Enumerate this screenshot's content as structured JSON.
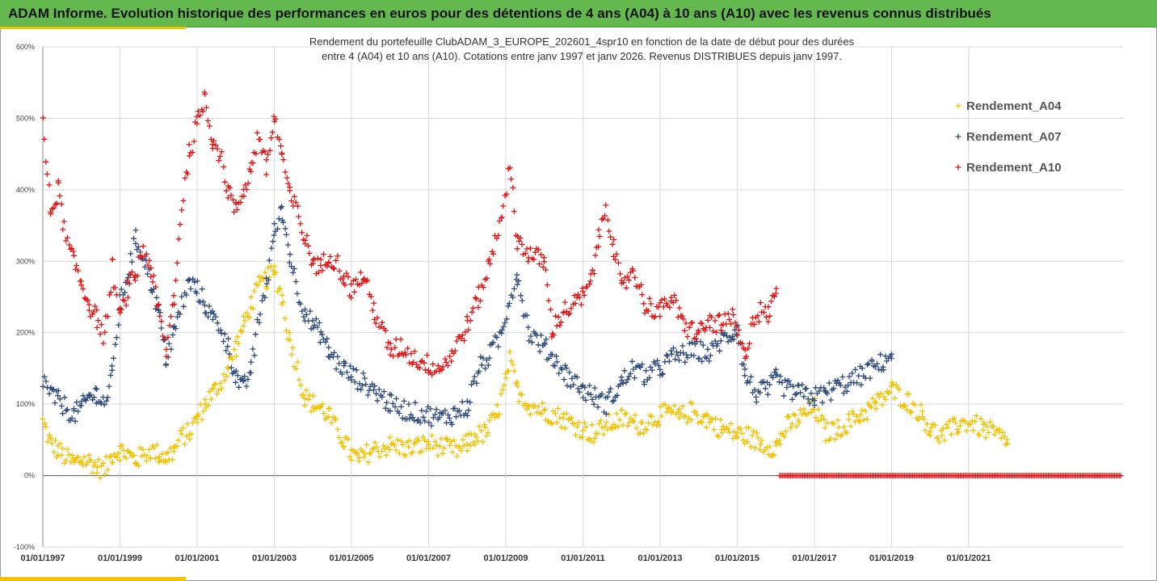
{
  "header": {
    "title": "ADAM Informe. Evolution historique des performances en euros pour des détentions de 4 ans (A04) à 10 ans (A10) avec les revenus connus distribués"
  },
  "chart_data": {
    "type": "scatter",
    "title_lines": [
      "Rendement du portefeuille ClubADAM_3_EUROPE_202601_4spr10  en fonction de la date de début pour des durées",
      "entre 4 (A04) et 10 ans (A10). Cotations entre janv 1997 et janv 2026. Revenus DISTRIBUES depuis janv 1997."
    ],
    "xlabel": "",
    "ylabel": "",
    "ylim": [
      -100,
      600
    ],
    "xlim": [
      1997.0,
      2025.0
    ],
    "y_ticks": [
      -100,
      0,
      100,
      200,
      300,
      400,
      500,
      600
    ],
    "y_tick_labels": [
      "-100%",
      "0%",
      "100%",
      "200%",
      "300%",
      "400%",
      "500%",
      "600%"
    ],
    "x_ticks": [
      1997,
      1999,
      2001,
      2003,
      2005,
      2007,
      2009,
      2011,
      2013,
      2015,
      2017,
      2019,
      2021
    ],
    "x_tick_labels": [
      "01/01/1997",
      "01/01/1999",
      "01/01/2001",
      "01/01/2003",
      "01/01/2005",
      "01/01/2007",
      "01/01/2009",
      "01/01/2011",
      "01/01/2013",
      "01/01/2015",
      "01/01/2017",
      "01/01/2019",
      "01/01/2021"
    ],
    "legend_position": "top-right",
    "series": [
      {
        "name": "Rendement_A04",
        "color": "#f2c200",
        "x": [
          1997.0,
          1997.2,
          1997.4,
          1997.6,
          1997.8,
          1998.0,
          1998.2,
          1998.4,
          1998.6,
          1998.8,
          1999.0,
          1999.2,
          1999.4,
          1999.6,
          1999.8,
          2000.0,
          2000.2,
          2000.4,
          2000.6,
          2000.8,
          2001.0,
          2001.2,
          2001.4,
          2001.6,
          2001.8,
          2002.0,
          2002.2,
          2002.4,
          2002.6,
          2002.8,
          2003.0,
          2003.2,
          2003.4,
          2003.6,
          2003.8,
          2004.0,
          2004.2,
          2004.4,
          2004.6,
          2004.8,
          2005.0,
          2005.2,
          2005.5,
          2006.0,
          2006.5,
          2007.0,
          2007.5,
          2007.8,
          2008.0,
          2008.2,
          2008.5,
          2008.8,
          2009.0,
          2009.1,
          2009.3,
          2009.6,
          2010.0,
          2010.5,
          2011.0,
          2011.3,
          2011.6,
          2012.0,
          2012.5,
          2013.0,
          2013.3,
          2013.5,
          2013.8,
          2014.2,
          2014.6,
          2015.0,
          2015.3,
          2015.6,
          2016.0,
          2016.1,
          2016.3,
          2016.6,
          2017.0,
          2017.3,
          2017.6,
          2017.9,
          2018.2,
          2018.6,
          2019.0,
          2019.4,
          2019.8,
          2020.0,
          2020.3,
          2020.7,
          2021.0,
          2021.4,
          2021.8,
          2022.0
        ],
        "y": [
          75,
          45,
          35,
          25,
          18,
          22,
          20,
          12,
          8,
          30,
          35,
          30,
          22,
          28,
          35,
          30,
          25,
          35,
          55,
          60,
          80,
          100,
          115,
          130,
          150,
          180,
          210,
          240,
          265,
          275,
          285,
          250,
          190,
          150,
          110,
          100,
          95,
          85,
          65,
          50,
          30,
          22,
          35,
          42,
          38,
          45,
          38,
          35,
          45,
          55,
          60,
          90,
          130,
          160,
          120,
          100,
          90,
          80,
          65,
          58,
          70,
          80,
          70,
          85,
          88,
          82,
          90,
          80,
          65,
          58,
          55,
          45,
          40,
          50,
          70,
          80,
          95,
          60,
          65,
          75,
          85,
          100,
          120,
          105,
          85,
          65,
          55,
          70,
          75,
          65,
          55,
          45
        ]
      },
      {
        "name": "Rendement_A07",
        "color": "#2e4a7a",
        "x": [
          1997.0,
          1997.2,
          1997.4,
          1997.6,
          1997.8,
          1998.0,
          1998.2,
          1998.4,
          1998.6,
          1998.8,
          1999.0,
          1999.2,
          1999.4,
          1999.6,
          1999.8,
          2000.0,
          2000.2,
          2000.4,
          2000.6,
          2000.8,
          2001.0,
          2001.2,
          2001.4,
          2001.6,
          2001.8,
          2002.0,
          2002.2,
          2002.4,
          2002.6,
          2002.8,
          2003.0,
          2003.2,
          2003.4,
          2003.6,
          2003.8,
          2004.0,
          2004.2,
          2004.4,
          2004.6,
          2004.8,
          2005.0,
          2005.3,
          2005.6,
          2006.0,
          2006.5,
          2007.0,
          2007.3,
          2007.6,
          2008.0,
          2008.3,
          2008.6,
          2008.9,
          2009.1,
          2009.3,
          2009.6,
          2010.0,
          2010.3,
          2010.6,
          2011.0,
          2011.3,
          2011.6,
          2012.0,
          2012.3,
          2012.6,
          2013.0,
          2013.3,
          2013.6,
          2014.0,
          2014.3,
          2014.6,
          2014.9,
          2015.0,
          2015.2,
          2015.5,
          2015.8,
          2016.0,
          2016.3,
          2016.6,
          2017.0,
          2017.3,
          2017.6,
          2017.9,
          2018.2,
          2018.5,
          2018.8,
          2019.0
        ],
        "y": [
          135,
          115,
          105,
          95,
          85,
          95,
          110,
          115,
          100,
          140,
          240,
          280,
          330,
          310,
          270,
          230,
          165,
          200,
          240,
          270,
          260,
          240,
          220,
          210,
          180,
          140,
          120,
          150,
          220,
          270,
          340,
          370,
          310,
          260,
          230,
          210,
          200,
          175,
          160,
          150,
          140,
          130,
          120,
          100,
          90,
          85,
          80,
          85,
          95,
          150,
          170,
          200,
          250,
          280,
          200,
          180,
          160,
          140,
          120,
          110,
          100,
          130,
          150,
          140,
          150,
          165,
          170,
          175,
          170,
          190,
          200,
          210,
          140,
          115,
          120,
          135,
          120,
          115,
          110,
          115,
          125,
          130,
          140,
          150,
          160,
          170
        ]
      },
      {
        "name": "Rendement_A10",
        "color": "#e01515",
        "x": [
          1997.0,
          1997.2,
          1997.4,
          1997.6,
          1997.8,
          1998.0,
          1998.2,
          1998.4,
          1998.6,
          1998.8,
          1999.0,
          1999.2,
          1999.4,
          1999.6,
          1999.8,
          2000.0,
          2000.2,
          2000.4,
          2000.6,
          2000.8,
          2001.0,
          2001.2,
          2001.4,
          2001.6,
          2001.8,
          2002.0,
          2002.2,
          2002.4,
          2002.6,
          2002.8,
          2003.0,
          2003.2,
          2003.4,
          2003.6,
          2003.8,
          2004.0,
          2004.2,
          2004.4,
          2004.6,
          2004.8,
          2005.0,
          2005.3,
          2005.6,
          2006.0,
          2006.3,
          2006.6,
          2007.0,
          2007.3,
          2007.6,
          2008.0,
          2008.3,
          2008.6,
          2008.9,
          2009.1,
          2009.3,
          2009.6,
          2010.0,
          2010.2,
          2010.5,
          2010.8,
          2011.0,
          2011.2,
          2011.4,
          2011.6,
          2011.8,
          2012.0,
          2012.3,
          2012.6,
          2013.0,
          2013.3,
          2013.6,
          2014.0,
          2014.3,
          2014.6,
          2014.9,
          2015.0,
          2015.2,
          2015.4,
          2015.6,
          2015.8,
          2016.0
        ],
        "y": [
          490,
          370,
          400,
          330,
          300,
          270,
          240,
          220,
          190,
          290,
          220,
          260,
          280,
          320,
          290,
          230,
          175,
          250,
          380,
          450,
          490,
          530,
          470,
          450,
          400,
          370,
          400,
          430,
          480,
          430,
          500,
          450,
          390,
          370,
          330,
          300,
          290,
          310,
          300,
          280,
          260,
          280,
          230,
          175,
          180,
          165,
          155,
          150,
          170,
          210,
          250,
          300,
          370,
          430,
          330,
          310,
          300,
          205,
          230,
          240,
          250,
          270,
          330,
          380,
          320,
          260,
          290,
          240,
          230,
          250,
          210,
          200,
          215,
          210,
          220,
          200,
          165,
          220,
          230,
          225,
          255
        ]
      }
    ]
  }
}
